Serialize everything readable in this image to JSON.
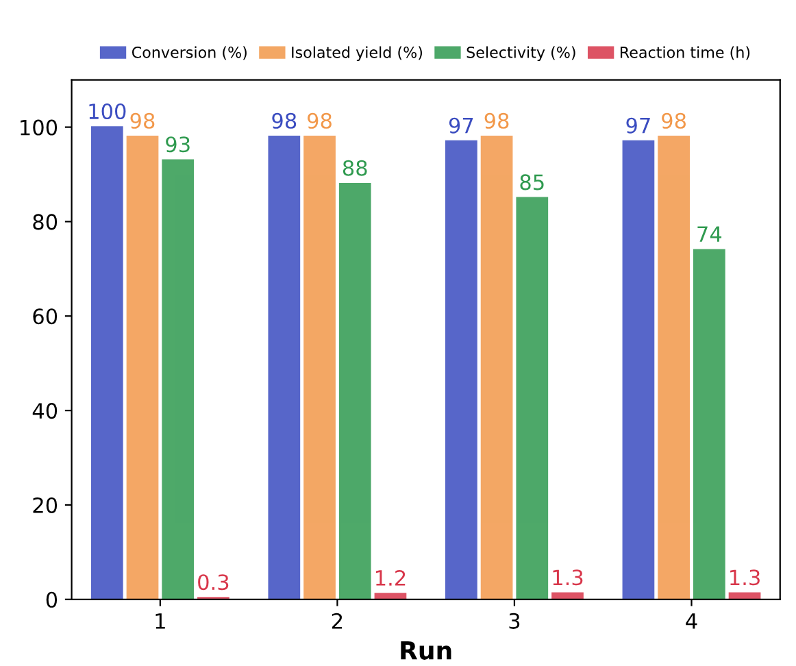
{
  "chart_data": {
    "type": "bar",
    "xlabel": "Run",
    "categories": [
      "1",
      "2",
      "3",
      "4"
    ],
    "series": [
      {
        "name": "Conversion (%)",
        "color": "#3a4cc0",
        "values": [
          100,
          98,
          97,
          97
        ]
      },
      {
        "name": "Isolated yield (%)",
        "color": "#f2984a",
        "values": [
          98,
          98,
          98,
          98
        ]
      },
      {
        "name": "Selectivity (%)",
        "color": "#2f9a4f",
        "values": [
          93,
          88,
          85,
          74
        ]
      },
      {
        "name": "Reaction time (h)",
        "color": "#d8364a",
        "values": [
          0.3,
          1.2,
          1.3,
          1.3
        ]
      }
    ],
    "ylim": [
      0,
      110
    ],
    "yticks": [
      0,
      20,
      40,
      60,
      80,
      100
    ],
    "data_labels": true,
    "legend": "top",
    "grid": false
  }
}
